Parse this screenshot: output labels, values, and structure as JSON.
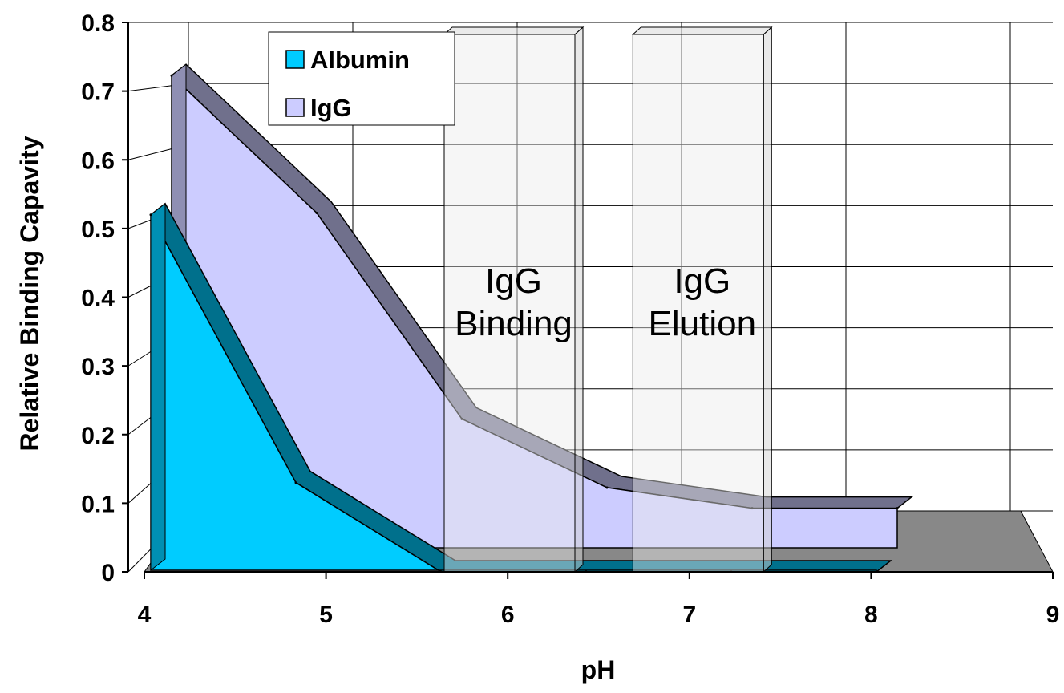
{
  "chart_data": {
    "type": "area",
    "xlabel": "pH",
    "ylabel": "Relative Binding Capavity",
    "x_ticks": [
      "4",
      "5",
      "6",
      "7",
      "8",
      "9"
    ],
    "y_ticks": [
      "0",
      "0.1",
      "0.2",
      "0.3",
      "0.4",
      "0.5",
      "0.6",
      "0.7",
      "0.8"
    ],
    "xlim": [
      4,
      9
    ],
    "ylim": [
      0,
      0.8
    ],
    "grid": true,
    "legend_position": "top-left",
    "series": [
      {
        "name": "Albumin",
        "color": "#00CCFF",
        "x": [
          4,
          5,
          6,
          7,
          8,
          9
        ],
        "y": [
          0.52,
          0.13,
          0.0,
          0.0,
          0.0,
          0.0
        ]
      },
      {
        "name": "IgG",
        "color": "#CCCCFF",
        "x": [
          4,
          5,
          6,
          7,
          8,
          9
        ],
        "y": [
          0.69,
          0.49,
          0.19,
          0.09,
          0.06,
          0.06
        ]
      }
    ],
    "annotations": [
      {
        "lines": [
          "IgG",
          "Binding"
        ],
        "x_range": [
          6,
          7
        ]
      },
      {
        "lines": [
          "IgG",
          "Elution"
        ],
        "x_range": [
          7.3,
          8.3
        ]
      }
    ]
  }
}
